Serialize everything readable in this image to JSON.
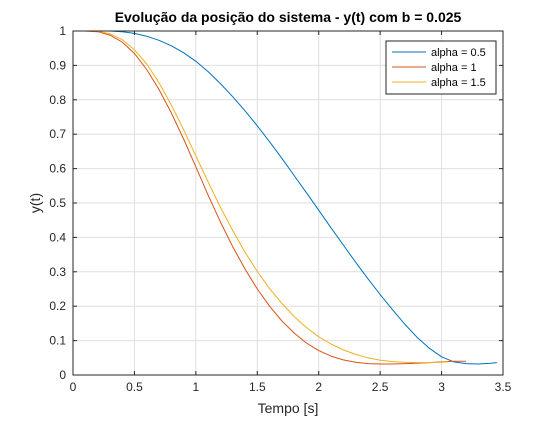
{
  "chart_data": {
    "type": "line",
    "title": "Evolução da posição do sistema - y(t) com b = 0.025",
    "xlabel": "Tempo [s]",
    "ylabel": "y(t)",
    "xlim": [
      0,
      3.5
    ],
    "ylim": [
      0,
      1
    ],
    "xticks": [
      0,
      0.5,
      1,
      1.5,
      2,
      2.5,
      3,
      3.5
    ],
    "xtick_labels": [
      "0",
      "0.5",
      "1",
      "1.5",
      "2",
      "2.5",
      "3",
      "3.5"
    ],
    "yticks": [
      0,
      0.1,
      0.2,
      0.3,
      0.4,
      0.5,
      0.6,
      0.7,
      0.8,
      0.9,
      1
    ],
    "ytick_labels": [
      "0",
      "0.1",
      "0.2",
      "0.3",
      "0.4",
      "0.5",
      "0.6",
      "0.7",
      "0.8",
      "0.9",
      "1"
    ],
    "grid": true,
    "legend_position": "top-right",
    "series": [
      {
        "name": "alpha = 0.5",
        "color": "#0072BD",
        "x": [
          0,
          0.1,
          0.2,
          0.3,
          0.4,
          0.5,
          0.6,
          0.7,
          0.8,
          0.9,
          1.0,
          1.1,
          1.2,
          1.3,
          1.4,
          1.5,
          1.6,
          1.7,
          1.8,
          1.9,
          2.0,
          2.1,
          2.2,
          2.3,
          2.4,
          2.5,
          2.6,
          2.7,
          2.8,
          2.9,
          3.0,
          3.1,
          3.2,
          3.3,
          3.4,
          3.45
        ],
        "y": [
          1.0,
          1.0,
          1.0,
          1.0,
          0.998,
          0.993,
          0.985,
          0.973,
          0.957,
          0.937,
          0.912,
          0.882,
          0.847,
          0.809,
          0.768,
          0.724,
          0.678,
          0.63,
          0.58,
          0.53,
          0.479,
          0.428,
          0.378,
          0.328,
          0.28,
          0.234,
          0.19,
          0.148,
          0.11,
          0.078,
          0.053,
          0.038,
          0.033,
          0.032,
          0.034,
          0.036
        ]
      },
      {
        "name": "alpha = 1",
        "color": "#D95319",
        "x": [
          0,
          0.1,
          0.2,
          0.3,
          0.4,
          0.5,
          0.6,
          0.7,
          0.8,
          0.9,
          1.0,
          1.1,
          1.2,
          1.3,
          1.4,
          1.5,
          1.6,
          1.7,
          1.8,
          1.9,
          2.0,
          2.1,
          2.2,
          2.3,
          2.4,
          2.5,
          2.6,
          2.7,
          2.8,
          2.9,
          3.0,
          3.1,
          3.2
        ],
        "y": [
          1.0,
          1.0,
          0.998,
          0.988,
          0.968,
          0.935,
          0.888,
          0.83,
          0.762,
          0.686,
          0.605,
          0.523,
          0.445,
          0.373,
          0.308,
          0.25,
          0.2,
          0.157,
          0.122,
          0.093,
          0.071,
          0.055,
          0.044,
          0.037,
          0.033,
          0.032,
          0.032,
          0.033,
          0.034,
          0.036,
          0.038,
          0.04,
          0.04
        ]
      },
      {
        "name": "alpha = 1.5",
        "color": "#EDB120",
        "x": [
          0,
          0.1,
          0.2,
          0.3,
          0.4,
          0.5,
          0.6,
          0.7,
          0.8,
          0.9,
          1.0,
          1.1,
          1.2,
          1.3,
          1.4,
          1.5,
          1.6,
          1.7,
          1.8,
          1.9,
          2.0,
          2.1,
          2.2,
          2.3,
          2.4,
          2.5,
          2.6,
          2.7,
          2.8,
          2.9,
          3.0,
          3.05
        ],
        "y": [
          1.0,
          1.0,
          0.999,
          0.992,
          0.975,
          0.946,
          0.904,
          0.85,
          0.785,
          0.713,
          0.637,
          0.561,
          0.488,
          0.42,
          0.357,
          0.301,
          0.251,
          0.208,
          0.17,
          0.138,
          0.111,
          0.09,
          0.073,
          0.06,
          0.05,
          0.043,
          0.039,
          0.037,
          0.036,
          0.036,
          0.037,
          0.038
        ]
      }
    ]
  }
}
